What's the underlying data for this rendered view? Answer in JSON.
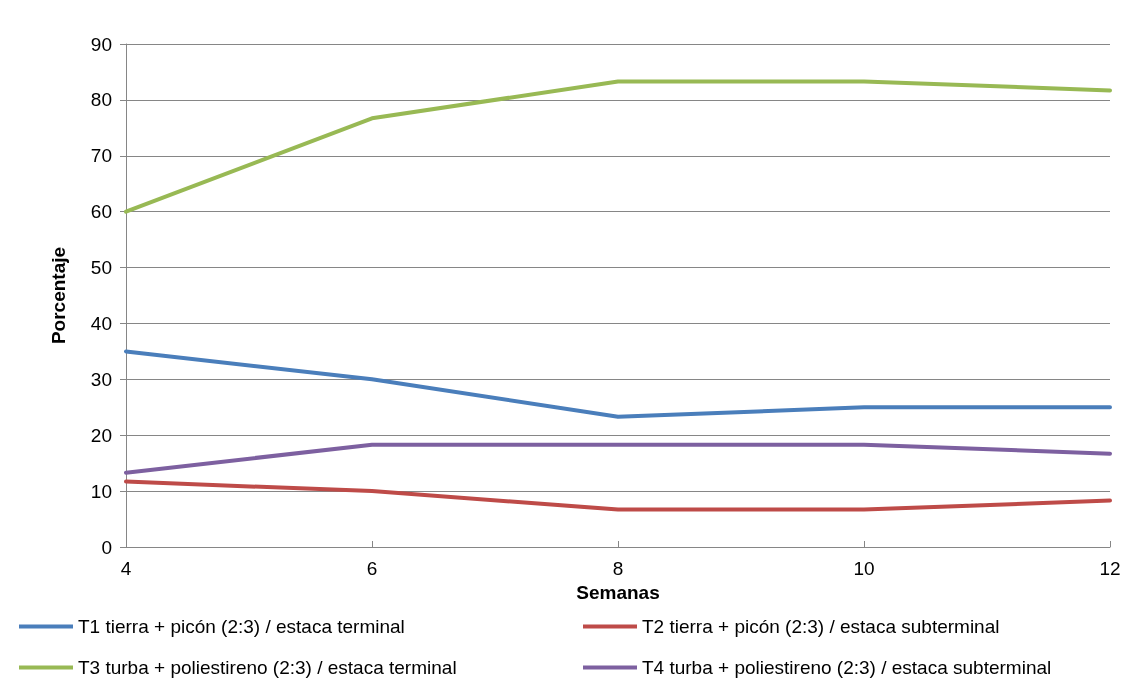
{
  "chart_data": {
    "type": "line",
    "xlabel": "Semanas",
    "ylabel": "Porcentaje",
    "x": [
      4,
      6,
      8,
      10,
      12
    ],
    "xlim": [
      4,
      12
    ],
    "xticks": [
      4,
      6,
      8,
      10,
      12
    ],
    "ylim": [
      0,
      90
    ],
    "yticks": [
      0,
      10,
      20,
      30,
      40,
      50,
      60,
      70,
      80,
      90
    ],
    "grid": "y",
    "legend": "bottom",
    "marker": "none",
    "line_style": "solid",
    "series": [
      {
        "name": "T1 tierra + picón (2:3) / estaca terminal",
        "color": "#4a7ebb",
        "values": [
          35,
          30,
          23.3,
          25,
          25
        ]
      },
      {
        "name": "T2 tierra + picón (2:3) / estaca subterminal",
        "color": "#be4b48",
        "values": [
          11.7,
          10,
          6.7,
          6.7,
          8.3
        ]
      },
      {
        "name": "T3 turba + poliestireno (2:3) / estaca terminal",
        "color": "#98b954",
        "values": [
          60,
          76.7,
          83.3,
          83.3,
          81.7
        ]
      },
      {
        "name": "T4 turba + poliestireno (2:3) / estaca subterminal",
        "color": "#7d60a0",
        "values": [
          13.3,
          18.3,
          18.3,
          18.3,
          16.7
        ]
      }
    ]
  }
}
